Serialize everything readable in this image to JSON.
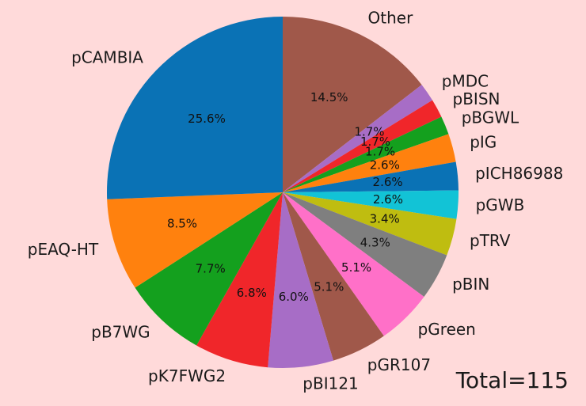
{
  "chart_data": {
    "type": "pie",
    "total_label": "Total=115",
    "start_angle_deg": 90,
    "direction": "clockwise",
    "slices": [
      {
        "label": "Other",
        "value": 14.5,
        "pct_label": "14.5%",
        "color": "#a0584a"
      },
      {
        "label": "pMDC",
        "value": 1.7,
        "pct_label": "1.7%",
        "color": "#a76dc6"
      },
      {
        "label": "pBISN",
        "value": 1.7,
        "pct_label": "1.7%",
        "color": "#f0262a"
      },
      {
        "label": "pBGWL",
        "value": 1.7,
        "pct_label": "1.7%",
        "color": "#14a01e"
      },
      {
        "label": "pIG",
        "value": 2.6,
        "pct_label": "2.6%",
        "color": "#ff810e"
      },
      {
        "label": "pICH86988",
        "value": 2.6,
        "pct_label": "2.6%",
        "color": "#0a72b5"
      },
      {
        "label": "pGWB",
        "value": 2.6,
        "pct_label": "2.6%",
        "color": "#12c3d6"
      },
      {
        "label": "pTRV",
        "value": 3.4,
        "pct_label": "3.4%",
        "color": "#bfbd10"
      },
      {
        "label": "pBIN",
        "value": 4.3,
        "pct_label": "4.3%",
        "color": "#7f7f7f"
      },
      {
        "label": "pGreen",
        "value": 5.1,
        "pct_label": "5.1%",
        "color": "#ff70c8"
      },
      {
        "label": "pGR107",
        "value": 5.1,
        "pct_label": "5.1%",
        "color": "#a0584a"
      },
      {
        "label": "pBI121",
        "value": 6.0,
        "pct_label": "6.0%",
        "color": "#a76dc6"
      },
      {
        "label": "pK7FWG2",
        "value": 6.8,
        "pct_label": "6.8%",
        "color": "#f0262a"
      },
      {
        "label": "pB7WG",
        "value": 7.7,
        "pct_label": "7.7%",
        "color": "#14a01e"
      },
      {
        "label": "pEAQ-HT",
        "value": 8.5,
        "pct_label": "8.5%",
        "color": "#ff810e"
      },
      {
        "label": "pCAMBIA",
        "value": 25.6,
        "pct_label": "25.6%",
        "color": "#0a72b5"
      }
    ]
  }
}
